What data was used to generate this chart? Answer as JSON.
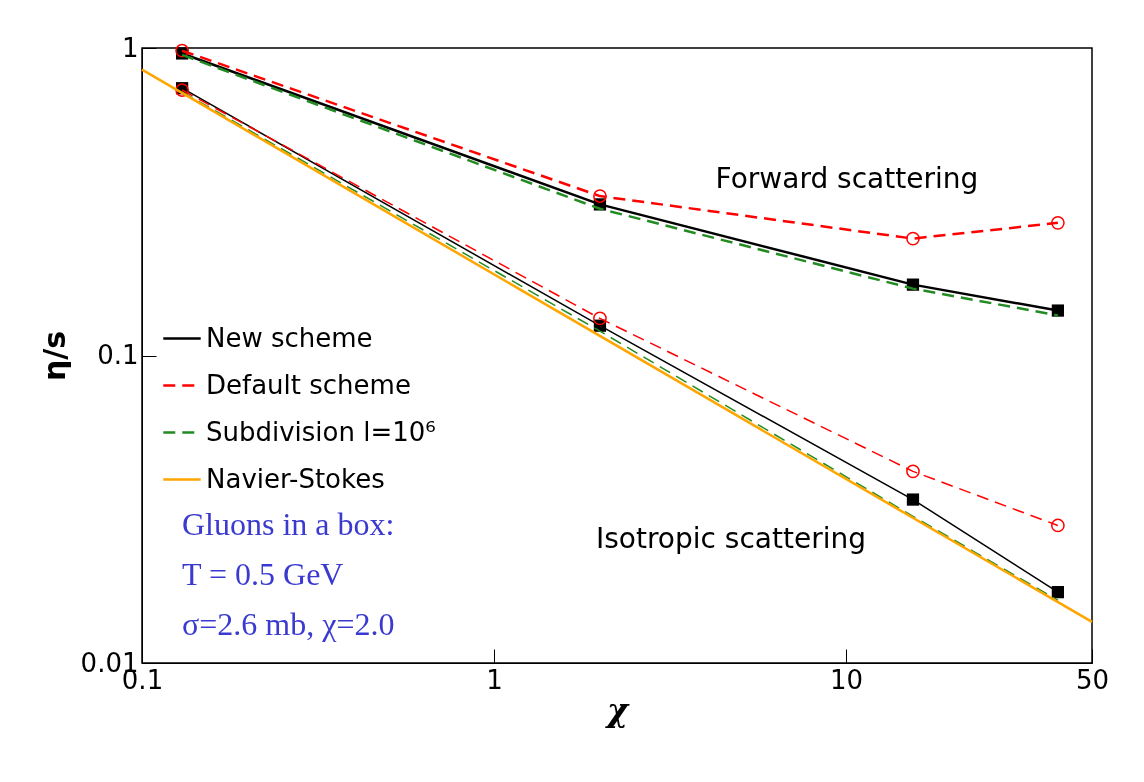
{
  "chart_data": {
    "type": "line",
    "xlabel": "χ",
    "ylabel": "η/s",
    "log": "xy",
    "xlim": [
      0.1,
      50
    ],
    "ylim": [
      0.01,
      1
    ],
    "xticks": [
      0.1,
      1,
      10,
      50
    ],
    "yticks": [
      0.01,
      0.1,
      1
    ],
    "legend": "left",
    "x": [
      0.13,
      2,
      15.5,
      40
    ],
    "series": [
      {
        "name": "New scheme",
        "color": "#000000",
        "marker": "square",
        "line_style": "solid",
        "values": [
          0.96,
          0.31,
          0.17,
          0.14
        ]
      },
      {
        "color": "#000000",
        "marker": "square",
        "line_style": "solid",
        "values": [
          0.74,
          0.125,
          0.034,
          0.017
        ]
      },
      {
        "name": "Default scheme",
        "color": "#ff0000",
        "marker": "circle",
        "line_style": "dashed",
        "values": [
          0.98,
          0.33,
          0.24,
          0.27
        ]
      },
      {
        "color": "#ff0000",
        "marker": "circle",
        "line_style": "dashed",
        "values": [
          0.73,
          0.132,
          0.042,
          0.028
        ]
      },
      {
        "name": "Subdivision  l=10⁶",
        "color": "#228b22",
        "line_style": "dashed",
        "values": [
          0.95,
          0.3,
          0.165,
          0.135
        ]
      },
      {
        "color": "#228b22",
        "line_style": "dashed",
        "values": [
          0.72,
          0.12,
          0.03,
          0.016
        ]
      },
      {
        "name": "Navier-Stokes",
        "color": "#ffa500",
        "line_style": "solid",
        "x": [
          0.1,
          50
        ],
        "values": [
          0.85,
          0.0136
        ]
      }
    ],
    "annotations": [
      "Forward scattering",
      "Isotropic scattering",
      "Gluons in a box:",
      "T = 0.5 GeV",
      "σ=2.6 mb, χ=2.0"
    ]
  }
}
